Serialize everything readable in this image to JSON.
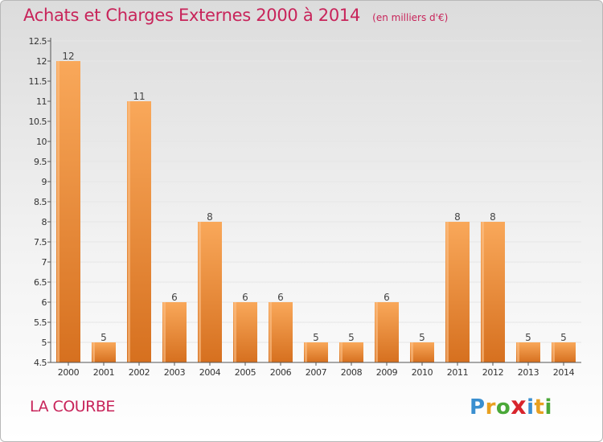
{
  "title": "Achats et Charges Externes 2000 à 2014",
  "unit": "(en milliers d'€)",
  "place": "LA COURBE",
  "logo_text": "Proxiti",
  "colors": {
    "title": "#c8245a",
    "bar_light": "#f9a85a",
    "bar_dark": "#d6701f",
    "axis": "#555555",
    "grid": "#e6e6e6"
  },
  "chart_data": {
    "type": "bar",
    "categories": [
      "2000",
      "2001",
      "2002",
      "2003",
      "2004",
      "2005",
      "2006",
      "2007",
      "2008",
      "2009",
      "2010",
      "2011",
      "2012",
      "2013",
      "2014"
    ],
    "values": [
      12,
      5,
      11,
      6,
      8,
      6,
      6,
      5,
      5,
      6,
      5,
      8,
      8,
      5,
      5
    ],
    "data_labels": [
      "12",
      "5",
      "11",
      "6",
      "8",
      "6",
      "6",
      "5",
      "5",
      "6",
      "5",
      "8",
      "8",
      "5",
      "5"
    ],
    "yticks": [
      "4.5",
      "5",
      "5.5",
      "6",
      "6.5",
      "7",
      "7.5",
      "8",
      "8.5",
      "9",
      "9.5",
      "10",
      "10.5",
      "11",
      "11.5",
      "12",
      "12.5"
    ],
    "ylim": [
      4.5,
      12.5
    ],
    "grid": "horizontal",
    "legend": "none"
  }
}
